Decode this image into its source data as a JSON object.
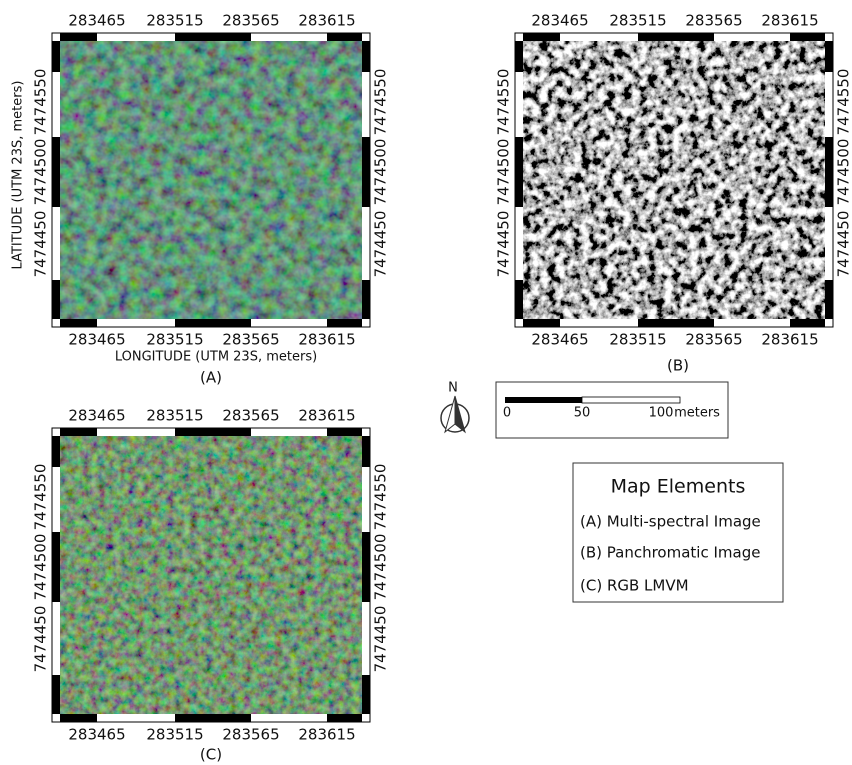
{
  "panels": [
    {
      "label": "(A)",
      "x_ticks": [
        "283465",
        "283515",
        "283565",
        "283615"
      ],
      "y_ticks": [
        "7474550",
        "7474500",
        "7474450"
      ],
      "x_title": "LONGITUDE (UTM 23S, meters)",
      "y_title": "LATITUDE (UTM 23S, meters)"
    },
    {
      "label": "(B)",
      "x_ticks": [
        "283465",
        "283515",
        "283565",
        "283615"
      ],
      "y_ticks": [
        "7474550",
        "7474500",
        "7474450"
      ]
    },
    {
      "label": "(C)",
      "x_ticks": [
        "283465",
        "283515",
        "283565",
        "283615"
      ],
      "y_ticks": [
        "7474550",
        "7474500",
        "7474450"
      ]
    }
  ],
  "north_arrow": {
    "label": "N"
  },
  "scale_bar": {
    "labels": [
      "0",
      "50",
      "100"
    ],
    "unit": "meters"
  },
  "legend": {
    "title": "Map Elements",
    "items": [
      "(A) Multi-spectral Image",
      "(B) Panchromatic Image",
      "(C) RGB LMVM"
    ]
  }
}
